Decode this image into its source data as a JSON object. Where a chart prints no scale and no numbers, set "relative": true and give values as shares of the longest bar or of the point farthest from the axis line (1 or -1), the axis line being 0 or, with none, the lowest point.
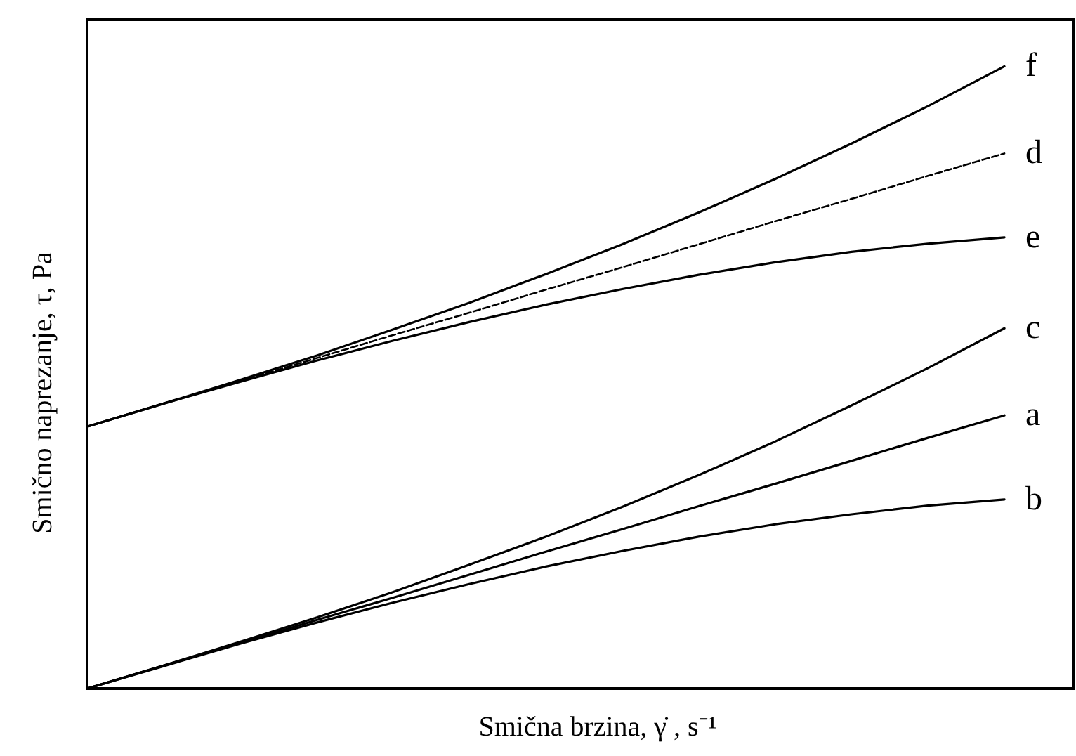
{
  "chart_data": {
    "type": "line",
    "relative": true,
    "xlabel": "Smična brzina, γ̇ , s⁻¹",
    "ylabel": "Smično naprezanje, τ, Pa",
    "categories": [
      null,
      null,
      null,
      null,
      null,
      null,
      null,
      null,
      null,
      null,
      null,
      null,
      null
    ],
    "series": [
      {
        "name": "f",
        "color": "#000000",
        "values": [
          0.421,
          0.458,
          0.496,
          0.535,
          0.577,
          0.62,
          0.666,
          0.714,
          0.765,
          0.819,
          0.876,
          0.936,
          1.0
        ]
      },
      {
        "name": "d",
        "color": "#000000",
        "line_style": "dashed",
        "values": [
          0.421,
          0.458,
          0.494,
          0.531,
          0.568,
          0.604,
          0.641,
          0.677,
          0.714,
          0.751,
          0.787,
          0.824,
          0.86
        ]
      },
      {
        "name": "e",
        "color": "#000000",
        "values": [
          0.421,
          0.458,
          0.493,
          0.527,
          0.559,
          0.589,
          0.617,
          0.642,
          0.665,
          0.685,
          0.702,
          0.715,
          0.725
        ]
      },
      {
        "name": "c",
        "color": "#000000",
        "values": [
          0,
          0.037,
          0.075,
          0.114,
          0.155,
          0.199,
          0.244,
          0.292,
          0.343,
          0.397,
          0.455,
          0.515,
          0.579
        ]
      },
      {
        "name": "a",
        "color": "#000000",
        "values": [
          0,
          0.037,
          0.073,
          0.11,
          0.146,
          0.183,
          0.22,
          0.256,
          0.293,
          0.329,
          0.366,
          0.403,
          0.439
        ]
      },
      {
        "name": "b",
        "color": "#000000",
        "values": [
          0,
          0.036,
          0.072,
          0.106,
          0.138,
          0.168,
          0.196,
          0.221,
          0.244,
          0.264,
          0.28,
          0.294,
          0.304
        ]
      }
    ]
  }
}
